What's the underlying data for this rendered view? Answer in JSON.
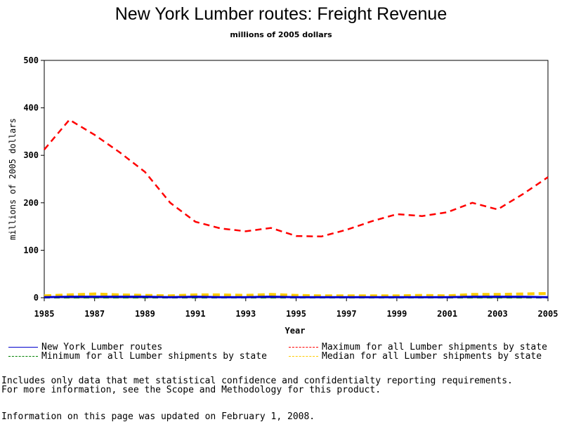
{
  "chart_data": {
    "type": "line",
    "title": "New York Lumber routes: Freight Revenue",
    "subtitle": "millions of 2005 dollars",
    "xlabel": "Year",
    "ylabel": "millions of 2005 dollars",
    "xlim": [
      1985,
      2005
    ],
    "ylim": [
      0,
      500
    ],
    "x_ticks": [
      "1985",
      "1987",
      "1989",
      "1991",
      "1993",
      "1995",
      "1997",
      "1999",
      "2001",
      "2003",
      "2005"
    ],
    "y_ticks": [
      "0",
      "100",
      "200",
      "300",
      "400",
      "500"
    ],
    "x": [
      1985,
      1986,
      1987,
      1988,
      1989,
      1990,
      1991,
      1992,
      1993,
      1994,
      1995,
      1996,
      1997,
      1998,
      1999,
      2000,
      2001,
      2002,
      2003,
      2004,
      2005
    ],
    "series": [
      {
        "name": "New York Lumber routes",
        "color": "#0000cc",
        "dash": "solid",
        "values": [
          1,
          2,
          2,
          2,
          2,
          1,
          2,
          1,
          1,
          2,
          1,
          1,
          1,
          1,
          1,
          1,
          1,
          2,
          2,
          2,
          1
        ]
      },
      {
        "name": "Minimum for all Lumber shipments by state",
        "color": "#008000",
        "dash": "dashed",
        "values": [
          0,
          0,
          0,
          0,
          0,
          0,
          0,
          0,
          0,
          0,
          0,
          0,
          0,
          0,
          0,
          0,
          0,
          0,
          0,
          0,
          0
        ]
      },
      {
        "name": "Maximum for all Lumber shipments by state",
        "color": "#ff0000",
        "dash": "dashed",
        "values": [
          312,
          375,
          343,
          306,
          265,
          200,
          160,
          146,
          140,
          147,
          130,
          129,
          143,
          161,
          176,
          172,
          180,
          200,
          186,
          218,
          254
        ]
      },
      {
        "name": "Median for all Lumber shipments by state",
        "color": "#ffcc00",
        "dash": "dashed",
        "values": [
          4,
          6,
          8,
          6,
          5,
          4,
          6,
          6,
          5,
          7,
          5,
          4,
          4,
          4,
          4,
          5,
          4,
          7,
          7,
          8,
          9
        ]
      }
    ],
    "legend_placement": "bottom",
    "grid": false
  },
  "notes": {
    "line1": "Includes only data that met statistical confidence and confidentialty reporting requirements.",
    "line2": "For more information, see the Scope and Methodology for this product.",
    "line3": "Information on this page was updated on February 1, 2008."
  }
}
